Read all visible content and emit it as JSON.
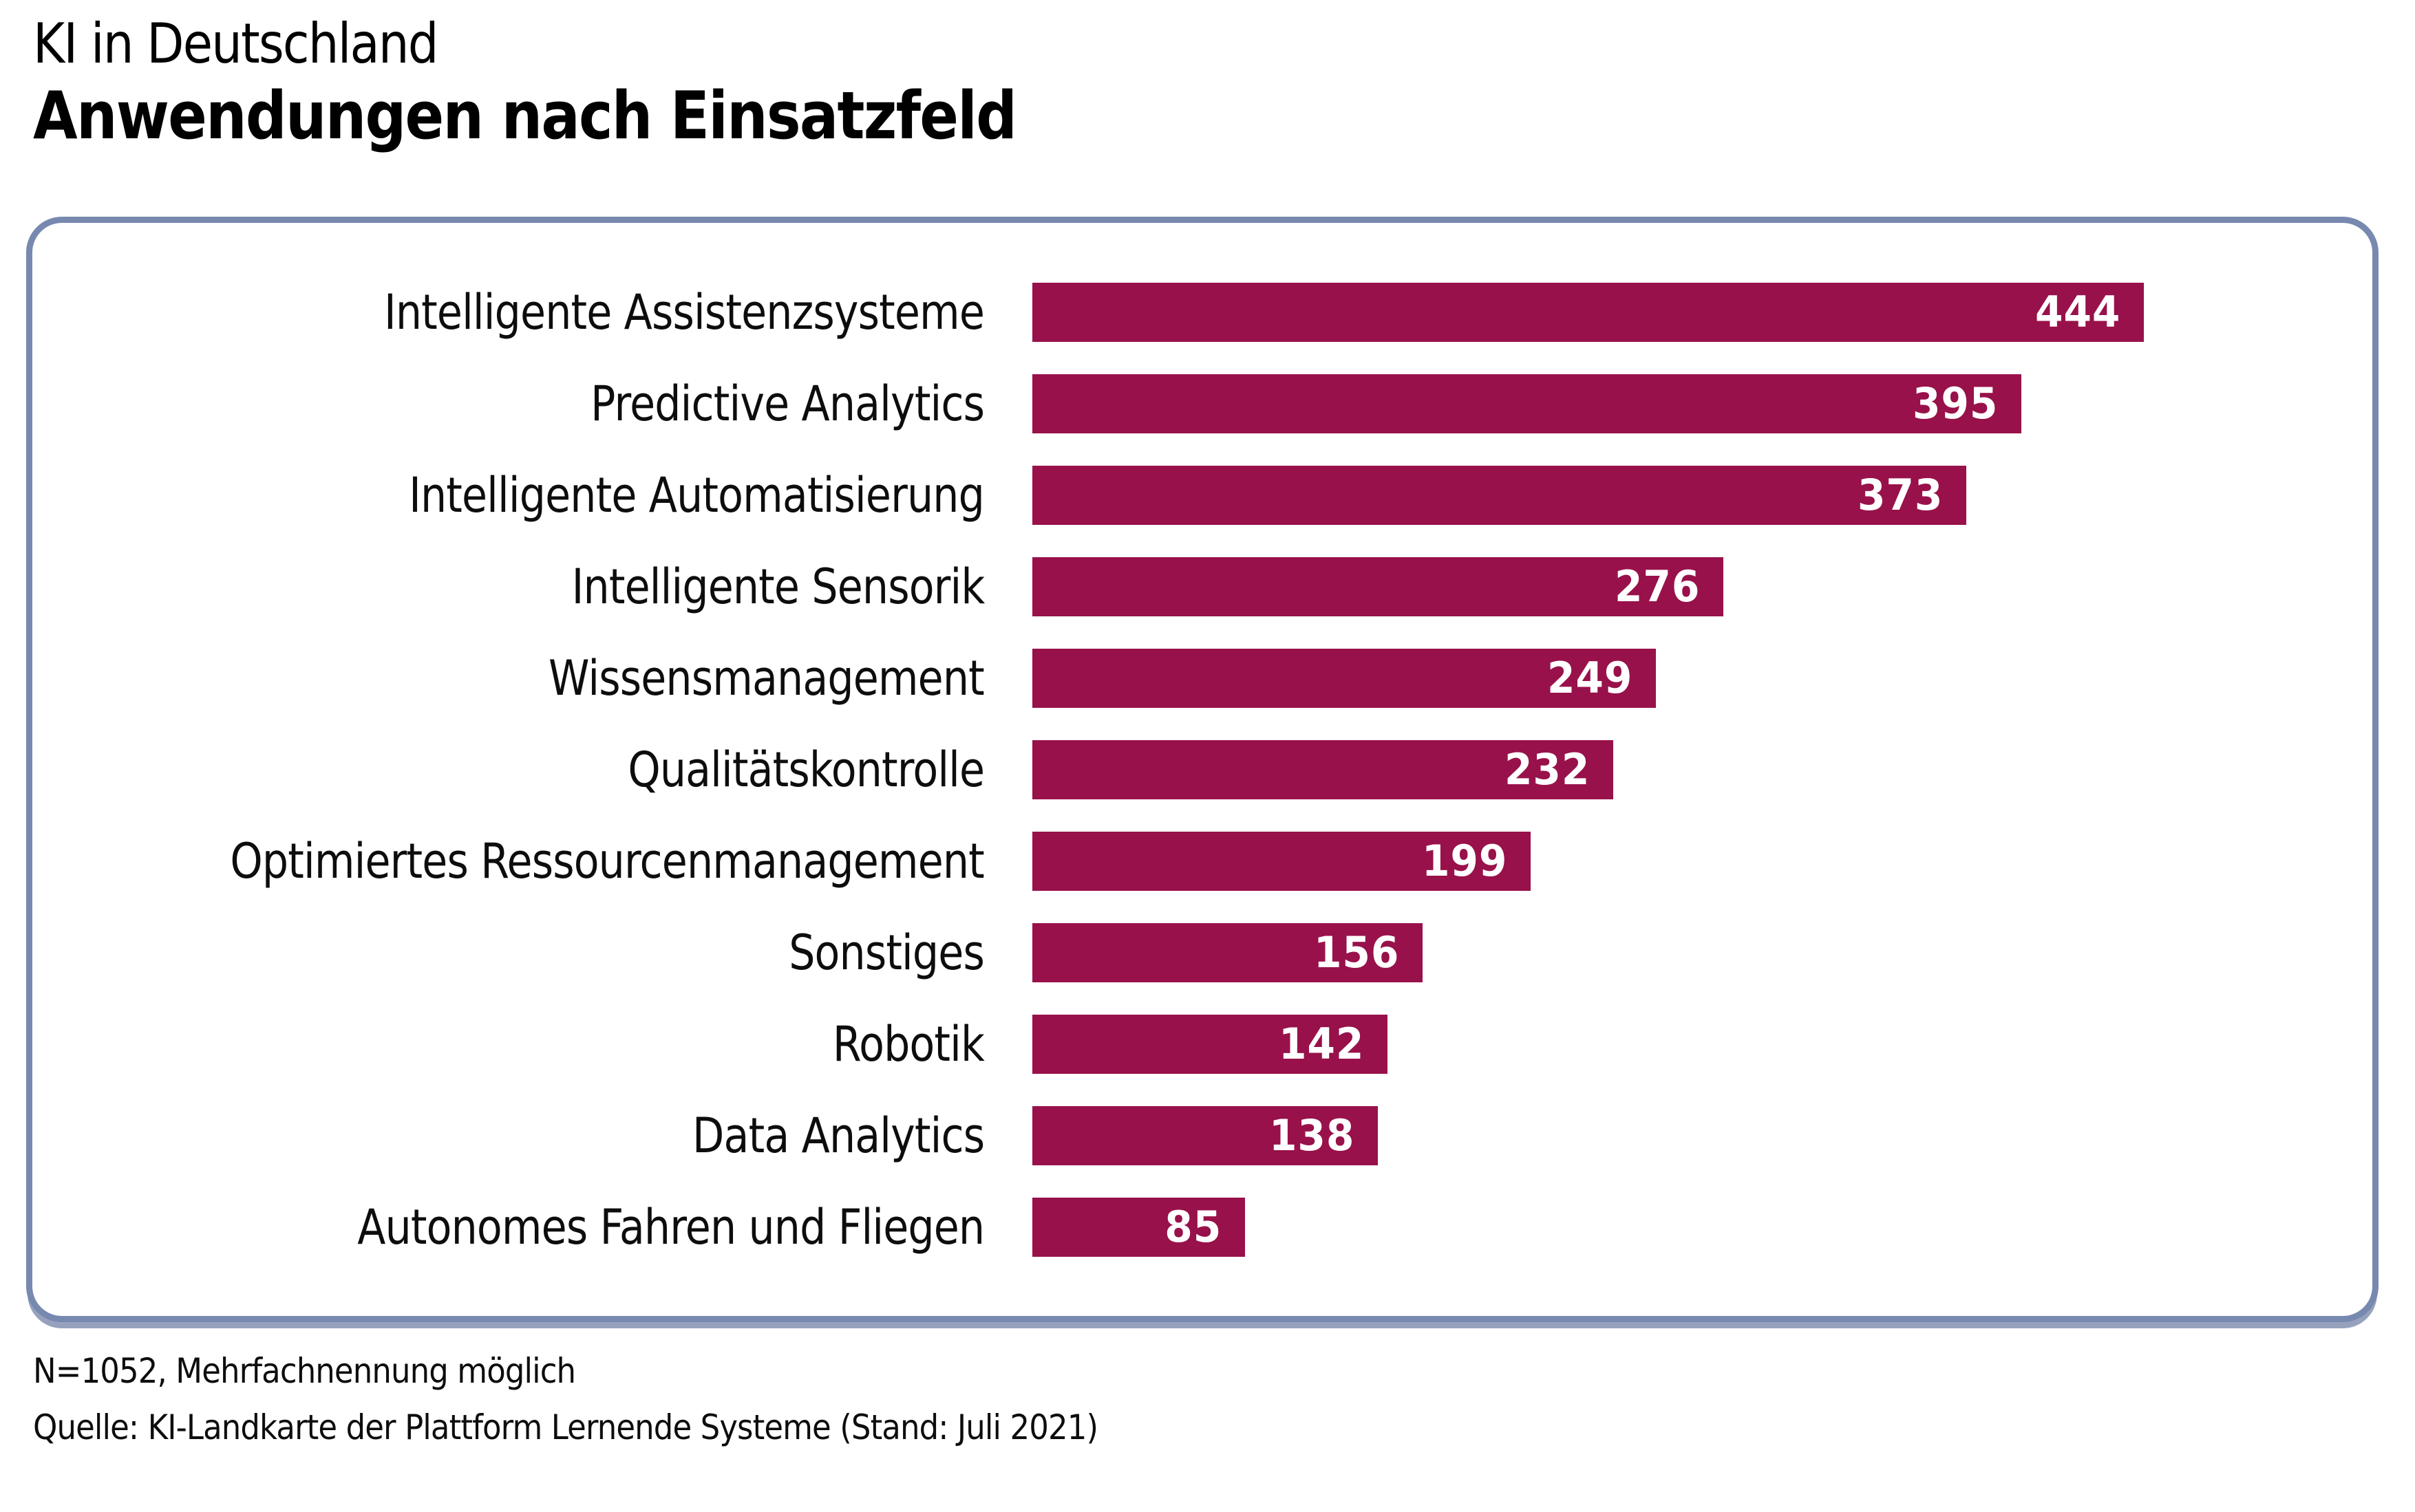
{
  "header": {
    "title_line1": "KI in Deutschland",
    "title_line2": "Anwendungen nach Einsatzfeld"
  },
  "chart_data": {
    "type": "bar",
    "orientation": "horizontal",
    "title": "KI in Deutschland – Anwendungen nach Einsatzfeld",
    "categories": [
      "Intelligente Assistenzsysteme",
      "Predictive Analytics",
      "Intelligente Automatisierung",
      "Intelligente Sensorik",
      "Wissensmanagement",
      "Qualitätskontrolle",
      "Optimiertes Ressourcenmanagement",
      "Sonstiges",
      "Robotik",
      "Data Analytics",
      "Autonomes Fahren und Fliegen"
    ],
    "values": [
      444,
      395,
      373,
      276,
      249,
      232,
      199,
      156,
      142,
      138,
      85
    ],
    "value_labels": "inside-end",
    "xlabel": "",
    "ylabel": "",
    "axis_ticks": "none",
    "grid": "off",
    "legend": "none",
    "bar_color": "#98114a",
    "value_label_color": "#ffffff"
  },
  "panel": {
    "border_color": "#7889b0"
  },
  "footnotes": {
    "note": "N=1052, Mehrfachnennung möglich",
    "source": "Quelle: KI-Landkarte der Plattform Lernende Systeme (Stand: Juli 2021)"
  }
}
